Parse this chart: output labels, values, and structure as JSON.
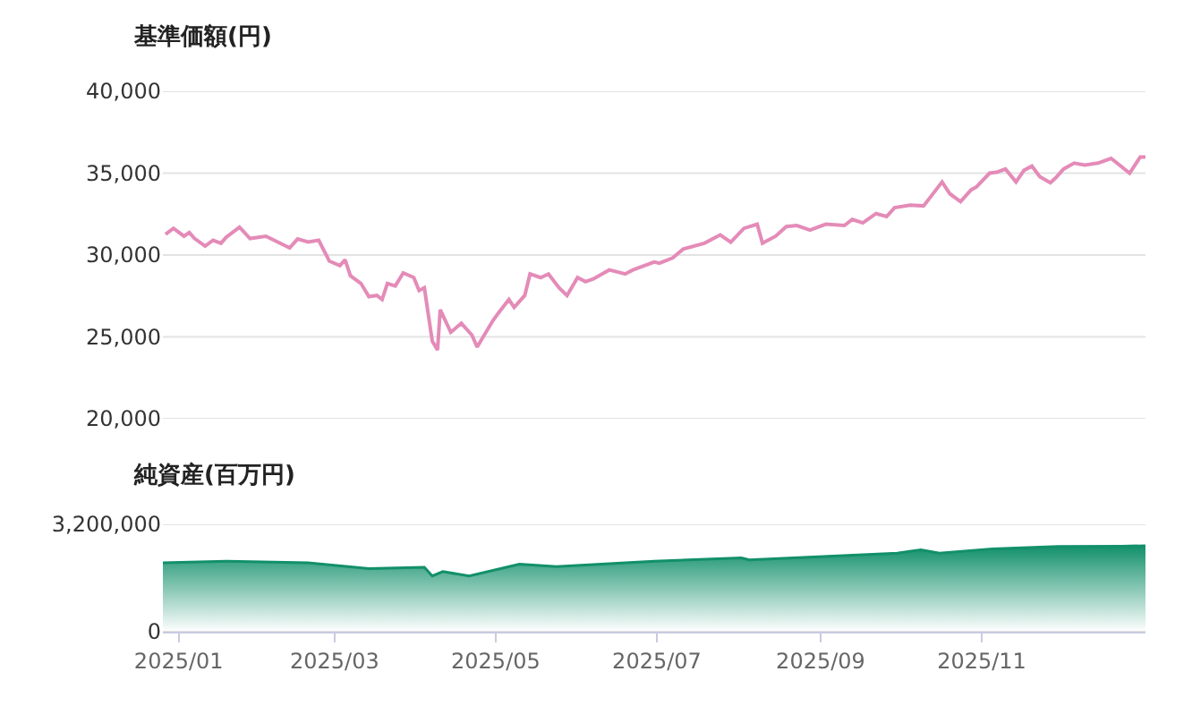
{
  "chart_data": [
    {
      "type": "line",
      "title": "基準価額(円)",
      "tick_labels": "y",
      "grid": "y",
      "xlim": [
        "2024-12-26",
        "2026-01-02"
      ],
      "ylim": [
        20000,
        40000
      ],
      "yticks": [
        {
          "value": 20000,
          "label": "20,000"
        },
        {
          "value": 25000,
          "label": "25,000"
        },
        {
          "value": 30000,
          "label": "30,000"
        },
        {
          "value": 35000,
          "label": "35,000"
        },
        {
          "value": 40000,
          "label": "40,000"
        }
      ],
      "series": [
        {
          "color": "#e48bb8",
          "x": [
            "2024-12-27",
            "2024-12-30",
            "2025-01-03",
            "2025-01-05",
            "2025-01-07",
            "2025-01-11",
            "2025-01-14",
            "2025-01-17",
            "2025-01-19",
            "2025-01-24",
            "2025-01-28",
            "2025-02-03",
            "2025-02-12",
            "2025-02-15",
            "2025-02-19",
            "2025-02-23",
            "2025-02-27",
            "2025-03-03",
            "2025-03-05",
            "2025-03-07",
            "2025-03-11",
            "2025-03-14",
            "2025-03-17",
            "2025-03-19",
            "2025-03-21",
            "2025-03-24",
            "2025-03-27",
            "2025-03-31",
            "2025-04-02",
            "2025-04-04",
            "2025-04-07",
            "2025-04-09",
            "2025-04-10",
            "2025-04-14",
            "2025-04-18",
            "2025-04-22",
            "2025-04-24",
            "2025-04-30",
            "2025-05-02",
            "2025-05-06",
            "2025-05-08",
            "2025-05-12",
            "2025-05-14",
            "2025-05-18",
            "2025-05-21",
            "2025-05-25",
            "2025-05-28",
            "2025-06-01",
            "2025-06-04",
            "2025-06-07",
            "2025-06-13",
            "2025-06-19",
            "2025-06-22",
            "2025-06-30",
            "2025-07-02",
            "2025-07-07",
            "2025-07-11",
            "2025-07-19",
            "2025-07-25",
            "2025-07-29",
            "2025-08-03",
            "2025-08-08",
            "2025-08-10",
            "2025-08-15",
            "2025-08-19",
            "2025-08-23",
            "2025-08-28",
            "2025-09-03",
            "2025-09-10",
            "2025-09-13",
            "2025-09-17",
            "2025-09-22",
            "2025-09-26",
            "2025-09-29",
            "2025-10-05",
            "2025-10-10",
            "2025-10-17",
            "2025-10-20",
            "2025-10-24",
            "2025-10-28",
            "2025-10-30",
            "2025-11-04",
            "2025-11-07",
            "2025-11-10",
            "2025-11-14",
            "2025-11-17",
            "2025-11-20",
            "2025-11-23",
            "2025-11-27",
            "2025-11-29",
            "2025-12-02",
            "2025-12-06",
            "2025-12-10",
            "2025-12-15",
            "2025-12-20",
            "2025-12-27",
            "2025-12-31",
            "2026-01-02"
          ],
          "values": [
            31260,
            31630,
            31150,
            31370,
            31010,
            30540,
            30900,
            30720,
            31090,
            31700,
            31010,
            31150,
            30430,
            30980,
            30790,
            30900,
            29630,
            29350,
            29710,
            28730,
            28260,
            27460,
            27530,
            27280,
            28260,
            28110,
            28910,
            28620,
            27830,
            28000,
            24740,
            24200,
            26660,
            25280,
            25830,
            25110,
            24380,
            26010,
            26450,
            27280,
            26800,
            27530,
            28840,
            28620,
            28840,
            28000,
            27530,
            28620,
            28370,
            28540,
            29090,
            28840,
            29090,
            29570,
            29500,
            29820,
            30360,
            30720,
            31230,
            30790,
            31630,
            31880,
            30720,
            31150,
            31740,
            31800,
            31520,
            31880,
            31800,
            32170,
            31960,
            32530,
            32350,
            32890,
            33040,
            33000,
            34460,
            33730,
            33260,
            33980,
            34160,
            35000,
            35070,
            35250,
            34460,
            35170,
            35430,
            34780,
            34410,
            34710,
            35250,
            35610,
            35500,
            35610,
            35900,
            35000,
            35980,
            35980
          ]
        }
      ]
    },
    {
      "type": "area",
      "title": "純資産(百万円)",
      "grid": "y",
      "xlim": [
        "2024-12-26",
        "2026-01-02"
      ],
      "ylim": [
        0,
        3200000
      ],
      "xticks": [
        {
          "value": "2025-01-01",
          "label": "2025/01"
        },
        {
          "value": "2025-03-01",
          "label": "2025/03"
        },
        {
          "value": "2025-05-01",
          "label": "2025/05"
        },
        {
          "value": "2025-07-01",
          "label": "2025/07"
        },
        {
          "value": "2025-09-01",
          "label": "2025/09"
        },
        {
          "value": "2025-11-01",
          "label": "2025/11"
        }
      ],
      "yticks": [
        0,
        {
          "value": 3200000,
          "label": "3,200,000"
        }
      ],
      "series": [
        {
          "color": "#12906a",
          "x": [
            "2024-12-26",
            "2025-01-19",
            "2025-02-19",
            "2025-03-14",
            "2025-04-04",
            "2025-04-07",
            "2025-04-11",
            "2025-04-21",
            "2025-05-10",
            "2025-05-24",
            "2025-06-30",
            "2025-08-02",
            "2025-08-05",
            "2025-09-30",
            "2025-10-09",
            "2025-10-16",
            "2025-11-05",
            "2025-11-30",
            "2025-12-24",
            "2026-01-02"
          ],
          "values": [
            2050000,
            2100000,
            2050000,
            1880000,
            1920000,
            1660000,
            1790000,
            1660000,
            2010000,
            1940000,
            2100000,
            2200000,
            2140000,
            2340000,
            2440000,
            2340000,
            2470000,
            2540000,
            2550000,
            2560000
          ]
        }
      ]
    }
  ]
}
